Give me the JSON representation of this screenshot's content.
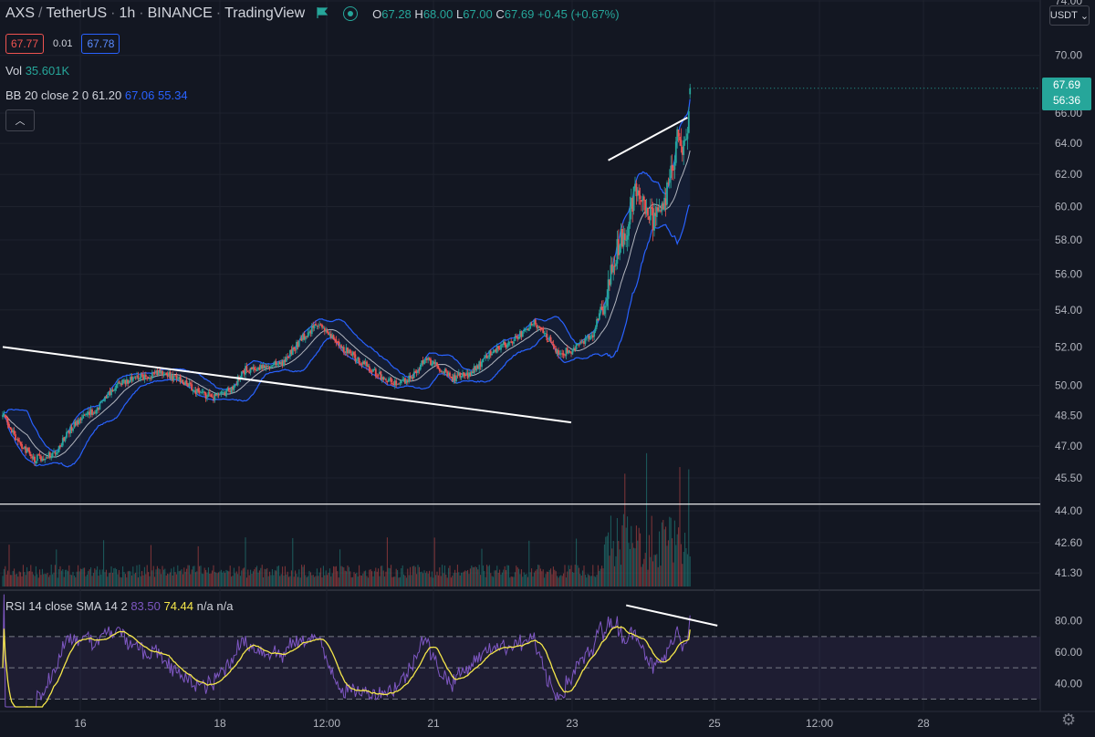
{
  "header": {
    "symbol": "AXS",
    "quote": "TetherUS",
    "interval": "1h",
    "exchange": "BINANCE",
    "platform": "TradingView",
    "ohlc": {
      "open_label": "O",
      "open": "67.28",
      "high_label": "H",
      "high": "68.00",
      "low_label": "L",
      "low": "67.00",
      "close_label": "C",
      "close": "67.69",
      "change": "+0.45 (+0.67%)"
    }
  },
  "prices": {
    "sell": "67.77",
    "spread": "0.01",
    "buy": "67.78"
  },
  "volume_label": {
    "name": "Vol",
    "value": "35.601K"
  },
  "bb_label": {
    "name": "BB 20 close 2 0",
    "basis": "61.20",
    "upper": "67.06",
    "lower": "55.34"
  },
  "rsi_label": {
    "name": "RSI 14 close SMA 14 2",
    "rsi": "83.50",
    "sma": "74.44",
    "na1": "n/a",
    "na2": "n/a"
  },
  "currency": "USDT",
  "last_price": {
    "price": "67.69",
    "countdown": "56:36"
  },
  "colors": {
    "up": "#26a69a",
    "down": "#ef5350",
    "bb": "#2962ff",
    "basis": "#b2b5be",
    "rsi": "#7e57c2",
    "rsi_sma": "#f5e74a",
    "background": "#131722"
  },
  "chart_data": {
    "type": "candlestick",
    "scale": "log",
    "price_axis_ticks": [
      "74.00",
      "70.00",
      "66.00",
      "64.00",
      "62.00",
      "60.00",
      "58.00",
      "56.00",
      "54.00",
      "52.00",
      "50.00",
      "48.50",
      "47.00",
      "45.50",
      "44.00",
      "42.60",
      "41.30"
    ],
    "time_axis_ticks": [
      "16",
      "18",
      "12:00",
      "21",
      "23",
      "25",
      "12:00",
      "28"
    ],
    "rsi_axis_ticks": [
      "80.00",
      "60.00",
      "40.00"
    ],
    "close_key_points": [
      [
        0,
        48.6
      ],
      [
        12,
        47.2
      ],
      [
        25,
        46.4
      ],
      [
        40,
        46.6
      ],
      [
        55,
        48.0
      ],
      [
        75,
        48.9
      ],
      [
        90,
        50.1
      ],
      [
        110,
        50.4
      ],
      [
        125,
        50.7
      ],
      [
        140,
        50.2
      ],
      [
        155,
        49.6
      ],
      [
        165,
        49.4
      ],
      [
        178,
        49.8
      ],
      [
        190,
        50.8
      ],
      [
        205,
        51.0
      ],
      [
        220,
        51.2
      ],
      [
        235,
        52.5
      ],
      [
        245,
        53.2
      ],
      [
        258,
        52.6
      ],
      [
        270,
        51.7
      ],
      [
        285,
        51.0
      ],
      [
        300,
        50.3
      ],
      [
        310,
        50.1
      ],
      [
        320,
        50.4
      ],
      [
        330,
        51.4
      ],
      [
        340,
        51.0
      ],
      [
        352,
        50.4
      ],
      [
        365,
        50.6
      ],
      [
        375,
        51.2
      ],
      [
        385,
        51.9
      ],
      [
        395,
        52.2
      ],
      [
        408,
        52.8
      ],
      [
        415,
        53.3
      ],
      [
        425,
        52.6
      ],
      [
        435,
        51.7
      ],
      [
        445,
        51.8
      ],
      [
        455,
        52.3
      ],
      [
        462,
        52.6
      ],
      [
        468,
        54.0
      ],
      [
        474,
        55.2
      ],
      [
        479,
        57.0
      ],
      [
        484,
        58.2
      ],
      [
        489,
        58.6
      ],
      [
        494,
        60.8
      ],
      [
        498,
        61.4
      ],
      [
        503,
        60.2
      ],
      [
        509,
        59.1
      ],
      [
        514,
        59.6
      ],
      [
        519,
        60.5
      ],
      [
        524,
        62.4
      ],
      [
        528,
        64.6
      ],
      [
        532,
        63.9
      ],
      [
        536,
        65.2
      ],
      [
        538,
        67.69
      ]
    ],
    "candle_count": 539,
    "bollinger": {
      "period": 20,
      "source": "close",
      "mult": 2,
      "basis": 61.2,
      "upper": 67.06,
      "lower": 55.34
    },
    "rsi": {
      "length": 14,
      "source": "close",
      "sma_length": 14,
      "value": 83.5,
      "sma": 74.44,
      "bands": [
        70,
        50,
        30
      ]
    },
    "last_volume": "35.601K",
    "drawings": [
      {
        "type": "trendline",
        "from": [
          0,
          52.0
        ],
        "to": [
          445,
          48.15
        ]
      },
      {
        "type": "trendline",
        "from": [
          474,
          62.9
        ],
        "to": [
          536,
          65.7
        ]
      },
      {
        "type": "horizontal",
        "price": 44.3
      },
      {
        "type": "rsi-trendline",
        "from": [
          488,
          90
        ],
        "to": [
          538,
          77
        ]
      }
    ]
  }
}
